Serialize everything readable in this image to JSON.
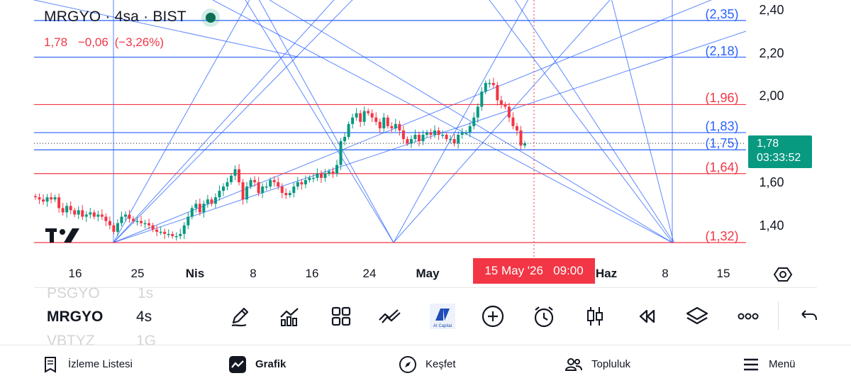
{
  "header": {
    "symbol_line": "MRGYO · 4sa · BIST",
    "last": "1,78",
    "change": "−0,06",
    "change_pct": "(−3,26%)"
  },
  "price_axis": {
    "ticks": [
      "2,40",
      "2,20",
      "2,00",
      "1,60",
      "1,40"
    ],
    "current_price": "1,78",
    "countdown": "03:33:52"
  },
  "levels": [
    {
      "label": "(2,35)",
      "value": 2.35,
      "color": "#2962ff"
    },
    {
      "label": "(2,18)",
      "value": 2.18,
      "color": "#2962ff"
    },
    {
      "label": "(1,96)",
      "value": 1.96,
      "color": "#f23645"
    },
    {
      "label": "(1,83)",
      "value": 1.83,
      "color": "#2962ff"
    },
    {
      "label": "(1,75)",
      "value": 1.75,
      "color": "#2962ff"
    },
    {
      "label": "(1,64)",
      "value": 1.64,
      "color": "#f23645"
    },
    {
      "label": "(1,32)",
      "value": 1.32,
      "color": "#f23645"
    }
  ],
  "time_axis": {
    "labels": [
      "16",
      "25",
      "Nis",
      "8",
      "16",
      "24",
      "May",
      "Haz",
      "8",
      "15"
    ],
    "bold_labels": [
      "Nis",
      "May",
      "Haz"
    ],
    "crosshair_date": "15 May '26   09:00"
  },
  "symbols_list": [
    "PSGYO",
    "MRGYO",
    "VBTYZ"
  ],
  "intervals_list": [
    "1s",
    "4s",
    "1G"
  ],
  "toolbar": {
    "tools": [
      "drawing-tools",
      "indicators",
      "layouts",
      "compare",
      "ai-capital",
      "add",
      "alert",
      "chart-type",
      "replay",
      "layers",
      "more",
      "undo"
    ],
    "ai_label": "AI Capital"
  },
  "bottom_nav": {
    "watchlist": "İzleme Listesi",
    "chart": "Grafik",
    "explore": "Keşfet",
    "community": "Topluluk",
    "menu": "Menü"
  },
  "colors": {
    "up": "#089981",
    "down": "#f23645",
    "blue": "#2962ff",
    "crosshair": "#f23645"
  },
  "chart_data": {
    "type": "candlestick",
    "title": "MRGYO · 4sa · BIST",
    "x_labels": [
      "16",
      "25",
      "Nis",
      "8",
      "16",
      "24",
      "May",
      "15 May '26",
      "Haz",
      "8",
      "15"
    ],
    "ylim": [
      1.3,
      2.43
    ],
    "y_ticks": [
      1.4,
      1.6,
      2.0,
      2.2,
      2.4
    ],
    "close_series": [
      1.53,
      1.52,
      1.51,
      1.53,
      1.52,
      1.53,
      1.48,
      1.46,
      1.49,
      1.47,
      1.45,
      1.47,
      1.44,
      1.45,
      1.46,
      1.44,
      1.45,
      1.44,
      1.42,
      1.4,
      1.37,
      1.41,
      1.44,
      1.45,
      1.43,
      1.42,
      1.42,
      1.41,
      1.41,
      1.4,
      1.38,
      1.37,
      1.37,
      1.36,
      1.36,
      1.35,
      1.35,
      1.36,
      1.4,
      1.44,
      1.48,
      1.5,
      1.46,
      1.5,
      1.52,
      1.5,
      1.53,
      1.56,
      1.58,
      1.6,
      1.63,
      1.66,
      1.6,
      1.52,
      1.58,
      1.61,
      1.6,
      1.55,
      1.58,
      1.58,
      1.61,
      1.6,
      1.58,
      1.55,
      1.54,
      1.55,
      1.58,
      1.6,
      1.59,
      1.61,
      1.62,
      1.62,
      1.64,
      1.62,
      1.64,
      1.65,
      1.64,
      1.68,
      1.79,
      1.81,
      1.87,
      1.9,
      1.92,
      1.88,
      1.93,
      1.92,
      1.9,
      1.88,
      1.85,
      1.9,
      1.86,
      1.85,
      1.87,
      1.84,
      1.8,
      1.78,
      1.8,
      1.82,
      1.79,
      1.82,
      1.83,
      1.82,
      1.84,
      1.82,
      1.82,
      1.8,
      1.8,
      1.78,
      1.82,
      1.83,
      1.83,
      1.86,
      1.9,
      1.95,
      2.02,
      2.06,
      2.06,
      2.05,
      1.98,
      1.96,
      1.95,
      1.9,
      1.86,
      1.84,
      1.77,
      1.78
    ],
    "horizontal_levels": [
      2.35,
      2.18,
      1.96,
      1.83,
      1.75,
      1.64,
      1.32
    ],
    "current_price": 1.78
  }
}
